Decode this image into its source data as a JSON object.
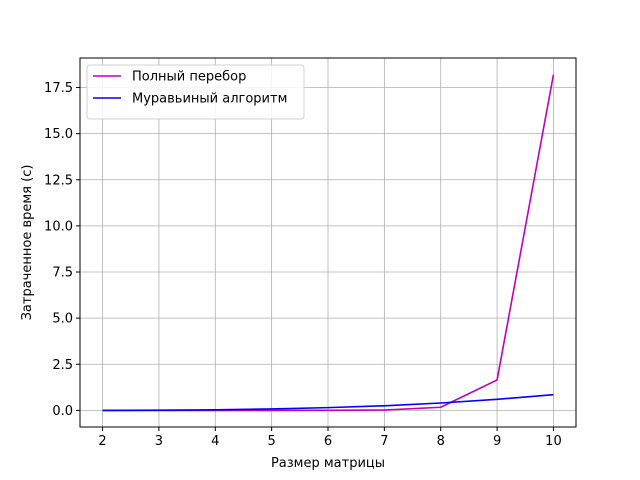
{
  "chart_data": {
    "type": "line",
    "title": "",
    "xlabel": "Размер матрицы",
    "ylabel": "Затраченное время (с)",
    "x": [
      2,
      3,
      4,
      5,
      6,
      7,
      8,
      9,
      10
    ],
    "xticks": [
      "2",
      "3",
      "4",
      "5",
      "6",
      "7",
      "8",
      "9",
      "10"
    ],
    "yticks": [
      "0.0",
      "2.5",
      "5.0",
      "7.5",
      "10.0",
      "12.5",
      "15.0",
      "17.5"
    ],
    "xlim": [
      1.6,
      10.4
    ],
    "ylim": [
      -0.9,
      19.1
    ],
    "grid": true,
    "legend_position": "top-left",
    "series": [
      {
        "name": "Полный перебор",
        "color": "#bf00bf",
        "values": [
          0.0,
          0.0,
          0.0,
          0.0,
          0.003,
          0.02,
          0.17,
          1.65,
          18.2
        ]
      },
      {
        "name": "Муравьиный алгоритм",
        "color": "#0000ff",
        "values": [
          0.0,
          0.01,
          0.03,
          0.08,
          0.15,
          0.25,
          0.4,
          0.6,
          0.85
        ]
      }
    ]
  }
}
